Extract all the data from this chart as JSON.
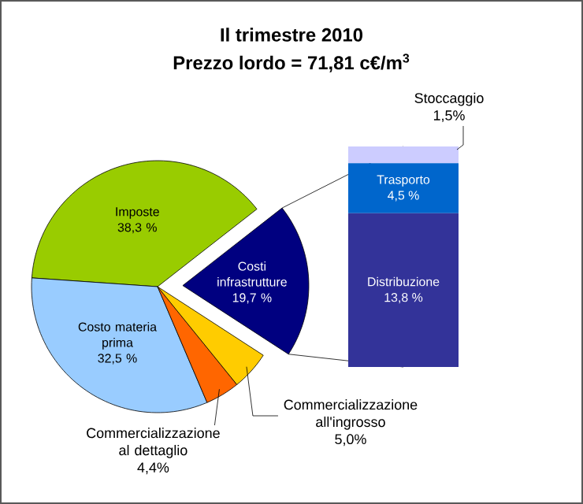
{
  "chart_data": [
    {
      "type": "pie",
      "title": "Il trimestre 2010",
      "subtitle": "Prezzo lordo = 71,81 c€/m$^{3}$",
      "categories": [
        "Imposte",
        "Costo materia prima",
        "Commercializzazione al dettaglio",
        "Commercializzazione all'ingrosso",
        "Costi infrastrutture"
      ],
      "values": [
        38.3,
        32.5,
        4.4,
        5.0,
        19.7
      ],
      "value_labels": [
        "38,3 %",
        "32,5 %",
        "4,4%",
        "5,0%",
        "19,7 %"
      ],
      "colors": [
        "#99cc00",
        "#99ccff",
        "#ff6600",
        "#ffcc00",
        "#000080"
      ]
    },
    {
      "type": "bar",
      "stacked": true,
      "categories": [
        null
      ],
      "series": [
        {
          "name": "Distribuzione",
          "color": "#333399",
          "values": [
            13.8
          ],
          "value_labels": [
            "13,8 %"
          ]
        },
        {
          "name": "Trasporto",
          "color": "#0066cc",
          "values": [
            4.5
          ],
          "value_labels": [
            "4,5 %"
          ]
        },
        {
          "name": "Stoccaggio",
          "color": "#ccccff",
          "values": [
            1.5
          ],
          "value_labels": [
            "1,5%"
          ]
        }
      ]
    }
  ]
}
